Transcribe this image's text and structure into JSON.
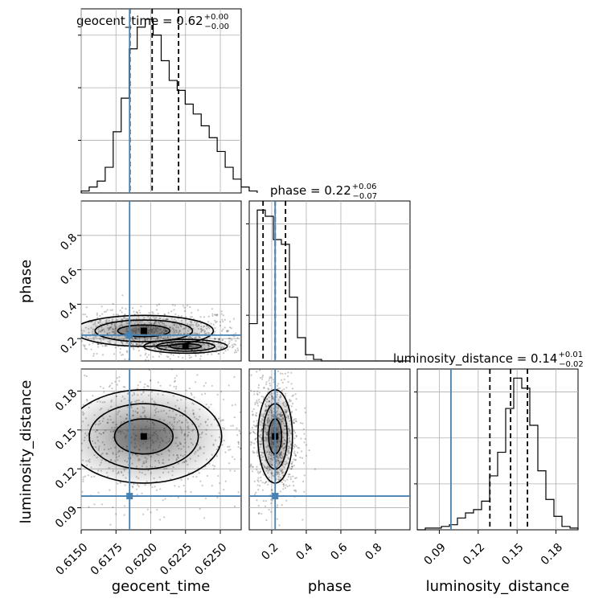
{
  "colors": {
    "truth": "#4682b4",
    "hist": "#000000",
    "grid": "#b0b0b0",
    "quantile": "#000000"
  },
  "params": [
    "geocent_time",
    "phase",
    "luminosity_distance"
  ],
  "titles": [
    {
      "text": "geocent_time = 0.62",
      "up": "+0.00",
      "down": "−0.00"
    },
    {
      "text": "phase = 0.22",
      "up": "+0.06",
      "down": "−0.07"
    },
    {
      "text": "luminosity_distance = 0.14",
      "up": "+0.01",
      "down": "−0.02"
    }
  ],
  "chart_data": {
    "type": "corner",
    "truths": [
      0.61848,
      0.22,
      0.099
    ],
    "ranges": [
      [
        0.615,
        0.6265
      ],
      [
        0.07,
        1.0
      ],
      [
        0.073,
        0.197
      ]
    ],
    "ticks": {
      "geocent_time": {
        "values": [
          0.615,
          0.6175,
          0.62,
          0.6225,
          0.625
        ],
        "labels": [
          "0.6150",
          "0.6175",
          "0.6200",
          "0.6225",
          "0.6250"
        ]
      },
      "phase": {
        "values": [
          0.2,
          0.4,
          0.6,
          0.8
        ],
        "labels": [
          "0.2",
          "0.4",
          "0.6",
          "0.8"
        ]
      },
      "luminosity_distance": {
        "values": [
          0.09,
          0.12,
          0.15,
          0.18
        ],
        "labels": [
          "0.09",
          "0.12",
          "0.15",
          "0.18"
        ]
      }
    },
    "histograms": {
      "geocent_time": {
        "bin_start": 0.615,
        "bin_width": 0.000575,
        "counts": [
          1,
          3,
          6,
          13,
          31,
          48,
          73,
          84,
          88,
          80,
          67,
          57,
          52,
          45,
          40,
          34,
          28,
          21,
          13,
          7,
          3,
          1
        ],
        "quantiles": [
          0.6185,
          0.6201,
          0.622
        ]
      },
      "phase": {
        "bin_start": 0.07,
        "bin_width": 0.0465,
        "counts": [
          24,
          97,
          93,
          78,
          75,
          41,
          15,
          4,
          1,
          0,
          0,
          0,
          0,
          0,
          0,
          0,
          0,
          0,
          0,
          0
        ],
        "quantiles": [
          0.15,
          0.22,
          0.28
        ]
      },
      "luminosity_distance": {
        "bin_start": 0.073,
        "bin_width": 0.0062,
        "counts": [
          0,
          1,
          1,
          2,
          3,
          7,
          10,
          12,
          17,
          32,
          46,
          72,
          90,
          84,
          62,
          35,
          18,
          8,
          2,
          1
        ],
        "quantiles": [
          0.129,
          0.145,
          0.158
        ]
      }
    },
    "contours": {
      "phase_vs_geocent_time": [
        {
          "center": [
            0.6195,
            0.245
          ],
          "spread": [
            0.0025,
            0.045
          ]
        },
        {
          "center": [
            0.6225,
            0.155
          ],
          "spread": [
            0.0015,
            0.02
          ]
        }
      ],
      "luminosity_distance_vs_geocent_time": [
        {
          "center": [
            0.6195,
            0.145
          ],
          "spread": [
            0.0028,
            0.018
          ]
        }
      ],
      "luminosity_distance_vs_phase": [
        {
          "center": [
            0.22,
            0.145
          ],
          "spread": [
            0.05,
            0.018
          ]
        }
      ]
    }
  }
}
